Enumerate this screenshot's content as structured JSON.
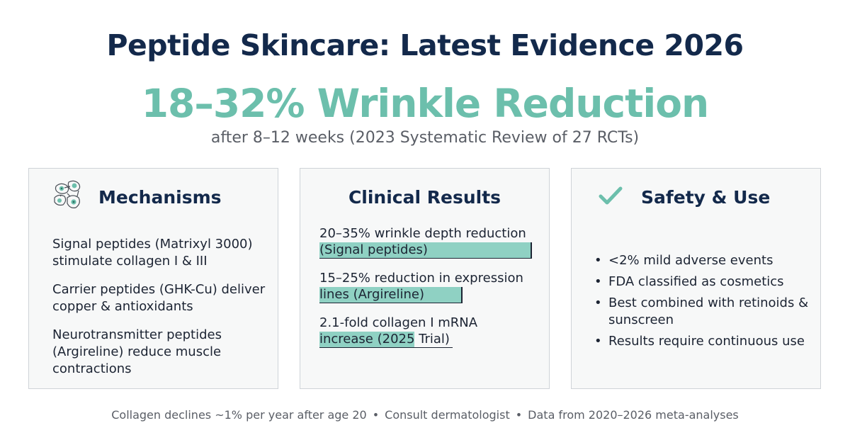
{
  "header": {
    "title": "Peptide Skincare: Latest Evidence 2026",
    "headline": "18–32% Wrinkle Reduction",
    "subline": "after 8–12 weeks (2023 Systematic Review of 27 RCTs)"
  },
  "colors": {
    "title": "#13294b",
    "accent": "#6cbfac",
    "highlight": "#8fd1c3",
    "card_bg": "#f7f8f8",
    "card_border": "#cfd3d8"
  },
  "mechanisms": {
    "icon": "cells-icon",
    "title": "Mechanisms",
    "items": [
      "Signal peptides (Matrixyl 3000) stimulate collagen I & III",
      "Carrier peptides (GHK-Cu) deliver copper & antioxidants",
      "Neurotransmitter peptides (Argireline) reduce muscle contractions"
    ]
  },
  "clinical": {
    "title": "Clinical Results",
    "items": [
      {
        "line1": "20–35% wrinkle depth reduction",
        "line2": "(Signal peptides)",
        "range_low": 20,
        "range_high": 35
      },
      {
        "line1": "15–25% reduction in expression",
        "line2": "lines (Argireline)",
        "range_low": 15,
        "range_high": 25
      },
      {
        "line1": "2.1-fold collagen I mRNA",
        "line2": "increase (2025 Trial)",
        "fold": 2.1
      }
    ]
  },
  "safety": {
    "icon": "checkmark-icon",
    "title": "Safety & Use",
    "items": [
      "<2% mild adverse events",
      "FDA classified as cosmetics",
      "Best combined with retinoids & sunscreen",
      "Results require continuous use"
    ]
  },
  "footer": {
    "items": [
      "Collagen declines ~1% per year after age 20",
      "Consult dermatologist",
      "Data from 2020–2026 meta-analyses"
    ],
    "separator": "•"
  }
}
